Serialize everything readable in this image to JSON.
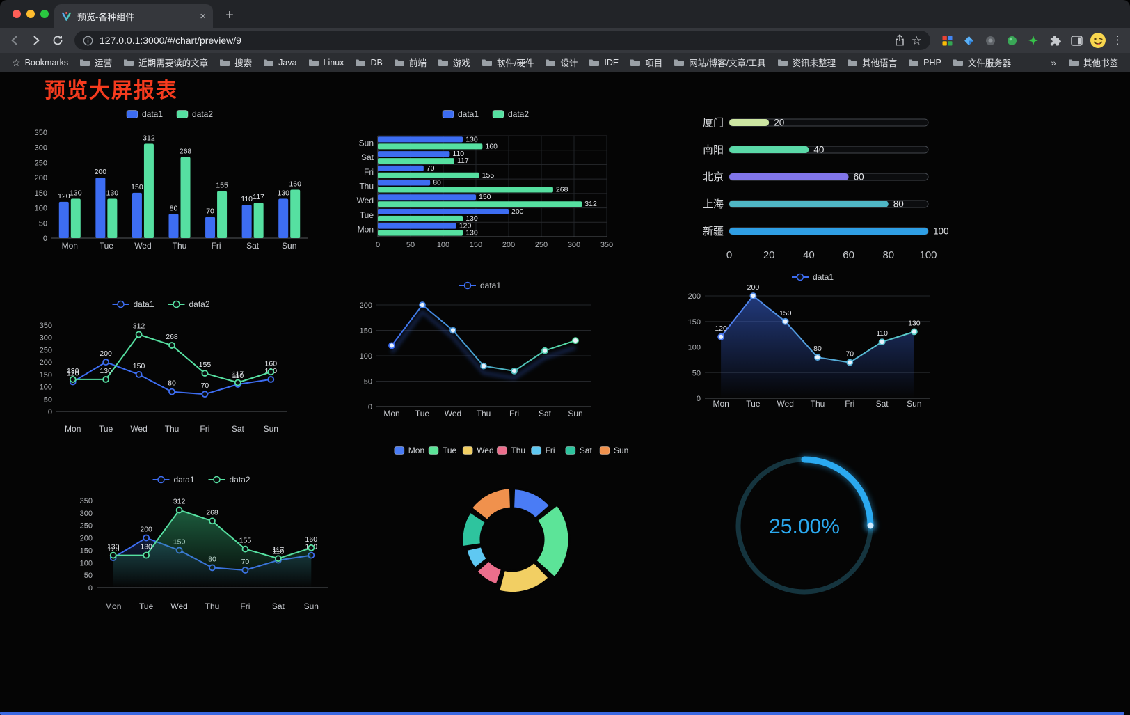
{
  "browser": {
    "tab_title": "预览-各种组件",
    "url": "127.0.0.1:3000/#/chart/preview/9",
    "icons": {
      "new_tab": "+",
      "tab_close": "×",
      "star": "☆",
      "menu": "⋮"
    },
    "bookmarks_bar": {
      "first": "Bookmarks",
      "folders": [
        "运营",
        "近期需要读的文章",
        "搜索",
        "Java",
        "Linux",
        "DB",
        "前端",
        "游戏",
        "软件/硬件",
        "设计",
        "IDE",
        "项目",
        "网站/博客/文章/工具",
        "资讯未整理",
        "其他语言",
        "PHP",
        "文件服务器"
      ],
      "overflow": "»",
      "other": "其他书签"
    }
  },
  "page": {
    "title": "预览大屏报表",
    "title_color": "#F53B1E",
    "scrollbar_color": "#3C69E2"
  },
  "chart_data": [
    {
      "name": "grouped-bar-chart",
      "type": "bar",
      "legend": [
        {
          "label": "data1",
          "color": "#3D6DF2"
        },
        {
          "label": "data2",
          "color": "#56E0A1"
        }
      ],
      "categories": [
        "Mon",
        "Tue",
        "Wed",
        "Thu",
        "Fri",
        "Sat",
        "Sun"
      ],
      "series": [
        {
          "name": "data1",
          "color": "#3D6DF2",
          "values": [
            120,
            200,
            150,
            80,
            70,
            110,
            130
          ]
        },
        {
          "name": "data2",
          "color": "#56E0A1",
          "values": [
            130,
            130,
            312,
            268,
            155,
            117,
            160
          ]
        }
      ],
      "ylim": [
        0,
        350
      ],
      "yticks": [
        0,
        50,
        100,
        150,
        200,
        250,
        300,
        350
      ]
    },
    {
      "name": "horizontal-bar-chart",
      "type": "hbar",
      "legend": [
        {
          "label": "data1",
          "color": "#3D6DF2"
        },
        {
          "label": "data2",
          "color": "#56E0A1"
        }
      ],
      "categories": [
        "Mon",
        "Tue",
        "Wed",
        "Thu",
        "Fri",
        "Sat",
        "Sun"
      ],
      "series": [
        {
          "name": "data1",
          "color": "#3D6DF2",
          "values": [
            120,
            200,
            150,
            80,
            70,
            110,
            130
          ]
        },
        {
          "name": "data2",
          "color": "#56E0A1",
          "values": [
            130,
            130,
            312,
            268,
            155,
            117,
            160
          ]
        }
      ],
      "xlim": [
        0,
        350
      ],
      "xticks": [
        0,
        50,
        100,
        150,
        200,
        250,
        300,
        350
      ]
    },
    {
      "name": "city-progress-bars",
      "type": "progress",
      "max": 100,
      "xticks": [
        0,
        20,
        40,
        60,
        80,
        100
      ],
      "rows": [
        {
          "label": "厦门",
          "value": 20,
          "color": "#CDE6A2"
        },
        {
          "label": "南阳",
          "value": 40,
          "color": "#5BD9A8"
        },
        {
          "label": "北京",
          "value": 60,
          "color": "#8175E9"
        },
        {
          "label": "上海",
          "value": 80,
          "color": "#4FB6C5"
        },
        {
          "label": "新疆",
          "value": 100,
          "color": "#2F9FE5"
        }
      ]
    },
    {
      "name": "dual-line-chart",
      "type": "line",
      "legend": [
        {
          "label": "data1",
          "color": "#3D6DF2"
        },
        {
          "label": "data2",
          "color": "#56E0A1"
        }
      ],
      "categories": [
        "Mon",
        "Tue",
        "Wed",
        "Thu",
        "Fri",
        "Sat",
        "Sun"
      ],
      "series": [
        {
          "name": "data1",
          "color": "#3D6DF2",
          "values": [
            120,
            200,
            150,
            80,
            70,
            110,
            130
          ],
          "labels": true
        },
        {
          "name": "data2",
          "color": "#56E0A1",
          "values": [
            130,
            130,
            312,
            268,
            155,
            117,
            160
          ],
          "labels": true
        }
      ],
      "ylim": [
        0,
        350
      ],
      "yticks": [
        0,
        50,
        100,
        150,
        200,
        250,
        300,
        350
      ],
      "grid": false
    },
    {
      "name": "gradient-line-chart",
      "type": "line",
      "legend": [
        {
          "label": "data1",
          "color": "#3D6DF2"
        }
      ],
      "categories": [
        "Mon",
        "Tue",
        "Wed",
        "Thu",
        "Fri",
        "Sat",
        "Sun"
      ],
      "series": [
        {
          "name": "data1",
          "gradient": [
            "#3D6DF2",
            "#56E0A1"
          ],
          "values": [
            120,
            200,
            150,
            80,
            70,
            110,
            130
          ],
          "labels": false,
          "shadow": true
        }
      ],
      "ylim": [
        0,
        200
      ],
      "yticks": [
        0,
        50,
        100,
        150,
        200
      ],
      "grid": true
    },
    {
      "name": "area-line-chart",
      "type": "line",
      "legend": [
        {
          "label": "data1",
          "color": "#3D6DF2"
        }
      ],
      "categories": [
        "Mon",
        "Tue",
        "Wed",
        "Thu",
        "Fri",
        "Sat",
        "Sun"
      ],
      "series": [
        {
          "name": "data1",
          "gradient": [
            "#4D79F0",
            "#5BD0C8"
          ],
          "values": [
            120,
            200,
            150,
            80,
            70,
            110,
            130
          ],
          "labels": true,
          "area": {
            "color": "#3E6EF2",
            "opacity": 0.5
          }
        }
      ],
      "ylim": [
        0,
        200
      ],
      "yticks": [
        0,
        50,
        100,
        150,
        200
      ],
      "grid": true
    },
    {
      "name": "dual-area-line-chart",
      "type": "line",
      "legend": [
        {
          "label": "data1",
          "color": "#3D6DF2"
        },
        {
          "label": "data2",
          "color": "#56E0A1"
        }
      ],
      "categories": [
        "Mon",
        "Tue",
        "Wed",
        "Thu",
        "Fri",
        "Sat",
        "Sun"
      ],
      "series": [
        {
          "name": "data1",
          "color": "#3D6DF2",
          "values": [
            120,
            200,
            150,
            80,
            70,
            110,
            130
          ],
          "labels": true,
          "area": {
            "color": "#3D6DF2",
            "opacity": 0.22
          }
        },
        {
          "name": "data2",
          "color": "#56E0A1",
          "values": [
            130,
            130,
            312,
            268,
            155,
            117,
            160
          ],
          "labels": true,
          "area": {
            "color": "#2FA26B",
            "opacity": 0.55
          }
        }
      ],
      "ylim": [
        0,
        350
      ],
      "yticks": [
        0,
        50,
        100,
        150,
        200,
        250,
        300,
        350
      ],
      "grid": false
    },
    {
      "name": "weekday-donut-chart",
      "type": "donut",
      "items": [
        {
          "name": "Mon",
          "value": 120,
          "color": "#4A7CF5"
        },
        {
          "name": "Tue",
          "value": 200,
          "color": "#5CE498"
        },
        {
          "name": "Wed",
          "value": 150,
          "color": "#F2CF63"
        },
        {
          "name": "Thu",
          "value": 80,
          "color": "#EC6E8C"
        },
        {
          "name": "Fri",
          "value": 70,
          "color": "#5FC8F2"
        },
        {
          "name": "Sat",
          "value": 110,
          "color": "#2EC49E"
        },
        {
          "name": "Sun",
          "value": 130,
          "color": "#F0914D"
        }
      ]
    },
    {
      "name": "percentage-gauge",
      "type": "gauge",
      "value": 25,
      "text": "25.00%",
      "color": "#2BA9EF",
      "track": "#15343E"
    }
  ]
}
